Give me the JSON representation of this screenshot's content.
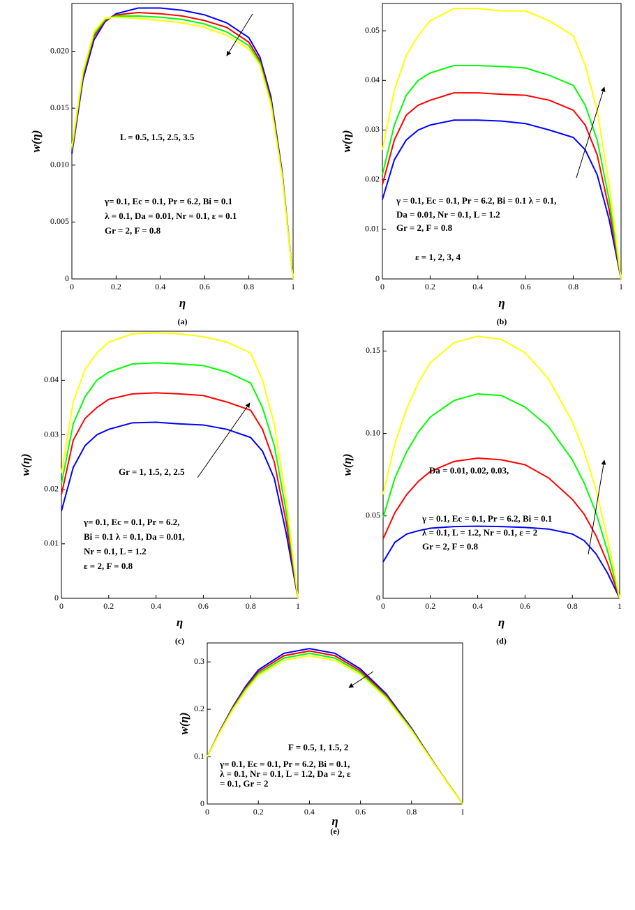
{
  "chart_data": [
    {
      "type": "line",
      "panel": "(a)",
      "xlabel": "η",
      "ylabel": "w(η)",
      "annotations": [
        "L = 0.5, 1.5, 2.5, 3.5",
        "γ= 0.1, Ec = 0.1, Pr = 6.2, Bi = 0.1",
        "λ = 0.1, Da = 0.01, Nr = 0.1, ε = 0.1",
        "Gr = 2, F = 0.8"
      ],
      "x": [
        0,
        0.05,
        0.1,
        0.15,
        0.2,
        0.3,
        0.4,
        0.5,
        0.6,
        0.7,
        0.8,
        0.85,
        0.9,
        0.95,
        1
      ],
      "series": [
        {
          "color": "#0000ff",
          "values": [
            0.011,
            0.0175,
            0.021,
            0.0226,
            0.0233,
            0.0238,
            0.0238,
            0.0236,
            0.0232,
            0.0225,
            0.0212,
            0.0195,
            0.016,
            0.0095,
            0
          ]
        },
        {
          "color": "#ff0000",
          "values": [
            0.0112,
            0.0178,
            0.0213,
            0.0227,
            0.0232,
            0.0234,
            0.0233,
            0.0231,
            0.0227,
            0.0221,
            0.0208,
            0.0192,
            0.0157,
            0.0093,
            0
          ]
        },
        {
          "color": "#00ff00",
          "values": [
            0.0114,
            0.018,
            0.0215,
            0.0228,
            0.0231,
            0.0231,
            0.023,
            0.0228,
            0.0224,
            0.0217,
            0.0205,
            0.019,
            0.0155,
            0.0092,
            0
          ]
        },
        {
          "color": "#ffff00",
          "values": [
            0.0116,
            0.0182,
            0.0217,
            0.0229,
            0.023,
            0.0229,
            0.0227,
            0.0225,
            0.0221,
            0.0214,
            0.0202,
            0.0188,
            0.0153,
            0.0091,
            0
          ]
        }
      ],
      "xlim": [
        0,
        1
      ],
      "xticks": [
        0,
        0.2,
        0.4,
        0.6,
        0.8,
        1
      ],
      "ylim": [
        0,
        0.0242
      ],
      "yticks": [
        0,
        0.005,
        {
          "value": 0.01,
          "label": "0.010"
        },
        0.015,
        {
          "value": 0.02,
          "label": "0.020"
        }
      ]
    },
    {
      "type": "line",
      "panel": "(b)",
      "xlabel": "η",
      "ylabel": "w(η)",
      "annotations": [
        "γ = 0.1, Ec = 0.1, Pr = 6.2, Bi = 0.1  λ = 0.1,",
        "Da = 0.01, Nr = 0.1, L = 1.2",
        "Gr = 2, F = 0.8",
        "ε = 1, 2, 3, 4"
      ],
      "x": [
        0,
        0.05,
        0.1,
        0.15,
        0.2,
        0.3,
        0.4,
        0.5,
        0.6,
        0.7,
        0.8,
        0.85,
        0.9,
        0.95,
        1
      ],
      "series": [
        {
          "color": "#0000ff",
          "values": [
            0.016,
            0.024,
            0.028,
            0.03,
            0.031,
            0.032,
            0.032,
            0.0318,
            0.0313,
            0.03,
            0.0285,
            0.026,
            0.021,
            0.012,
            0
          ]
        },
        {
          "color": "#ff0000",
          "values": [
            0.019,
            0.028,
            0.033,
            0.035,
            0.036,
            0.0375,
            0.0375,
            0.0372,
            0.037,
            0.036,
            0.034,
            0.031,
            0.025,
            0.014,
            0
          ]
        },
        {
          "color": "#00ff00",
          "values": [
            0.021,
            0.031,
            0.037,
            0.04,
            0.0415,
            0.043,
            0.043,
            0.0428,
            0.0425,
            0.041,
            0.039,
            0.035,
            0.028,
            0.016,
            0
          ]
        },
        {
          "color": "#ffff00",
          "values": [
            0.026,
            0.038,
            0.045,
            0.049,
            0.052,
            0.0545,
            0.0545,
            0.054,
            0.054,
            0.052,
            0.049,
            0.043,
            0.034,
            0.019,
            0
          ]
        }
      ],
      "xlim": [
        0,
        1
      ],
      "xticks": [
        0,
        0.2,
        0.4,
        0.6,
        0.8,
        1
      ],
      "ylim": [
        0,
        0.0555
      ],
      "yticks": [
        0,
        0.01,
        0.02,
        0.03,
        0.04,
        0.05
      ]
    },
    {
      "type": "line",
      "panel": "(c)",
      "xlabel": "η",
      "ylabel": "w(η)",
      "annotations": [
        "Gr = 1, 1.5, 2, 2.5",
        "γ= 0.1, Ec = 0.1, Pr = 6.2,",
        "Bi = 0.1  λ = 0.1, Da = 0.01,",
        "Nr = 0.1, L = 1.2",
        "ε = 2, F = 0.8"
      ],
      "x": [
        0,
        0.05,
        0.1,
        0.15,
        0.2,
        0.3,
        0.4,
        0.5,
        0.6,
        0.7,
        0.8,
        0.85,
        0.9,
        0.95,
        1
      ],
      "series": [
        {
          "color": "#0000ff",
          "values": [
            0.016,
            0.024,
            0.028,
            0.03,
            0.031,
            0.0322,
            0.0323,
            0.032,
            0.0318,
            0.031,
            0.0295,
            0.027,
            0.022,
            0.012,
            0
          ]
        },
        {
          "color": "#ff0000",
          "values": [
            0.019,
            0.029,
            0.033,
            0.035,
            0.0365,
            0.0375,
            0.0377,
            0.0375,
            0.0372,
            0.036,
            0.0345,
            0.031,
            0.025,
            0.014,
            0
          ]
        },
        {
          "color": "#00ff00",
          "values": [
            0.021,
            0.032,
            0.037,
            0.04,
            0.0415,
            0.043,
            0.0432,
            0.043,
            0.0427,
            0.0415,
            0.0395,
            0.035,
            0.028,
            0.016,
            0
          ]
        },
        {
          "color": "#ffff00",
          "values": [
            0.023,
            0.036,
            0.042,
            0.045,
            0.047,
            0.0485,
            0.0487,
            0.0485,
            0.048,
            0.047,
            0.045,
            0.04,
            0.032,
            0.018,
            0
          ]
        }
      ],
      "xlim": [
        0,
        1
      ],
      "xticks": [
        0,
        0.2,
        0.4,
        0.6,
        0.8,
        1
      ],
      "ylim": [
        0,
        0.049
      ],
      "yticks": [
        0,
        0.01,
        0.02,
        0.03,
        0.04
      ]
    },
    {
      "type": "line",
      "panel": "(d)",
      "xlabel": "η",
      "ylabel": "w(η)",
      "annotations": [
        "Da = 0.01, 0.02, 0.03,",
        "γ = 0.1, Ec = 0.1, Pr = 6.2, Bi = 0.1",
        "λ = 0.1, L = 1.2, Nr = 0.1, ε = 2",
        "Gr = 2, F = 0.8"
      ],
      "x": [
        0,
        0.05,
        0.1,
        0.15,
        0.2,
        0.3,
        0.4,
        0.5,
        0.6,
        0.7,
        0.8,
        0.85,
        0.9,
        0.95,
        1
      ],
      "series": [
        {
          "color": "#0000ff",
          "values": [
            0.022,
            0.034,
            0.039,
            0.041,
            0.0425,
            0.0435,
            0.0437,
            0.0435,
            0.043,
            0.042,
            0.039,
            0.035,
            0.027,
            0.015,
            0
          ]
        },
        {
          "color": "#ff0000",
          "values": [
            0.036,
            0.052,
            0.063,
            0.071,
            0.077,
            0.083,
            0.085,
            0.084,
            0.081,
            0.073,
            0.06,
            0.051,
            0.038,
            0.021,
            0
          ]
        },
        {
          "color": "#00ff00",
          "values": [
            0.049,
            0.073,
            0.089,
            0.101,
            0.11,
            0.12,
            0.124,
            0.123,
            0.116,
            0.104,
            0.084,
            0.07,
            0.052,
            0.028,
            0
          ]
        },
        {
          "color": "#ffff00",
          "values": [
            0.063,
            0.094,
            0.115,
            0.131,
            0.143,
            0.155,
            0.159,
            0.157,
            0.149,
            0.133,
            0.107,
            0.089,
            0.066,
            0.035,
            0
          ]
        }
      ],
      "xlim": [
        0,
        1
      ],
      "xticks": [
        0,
        0.2,
        0.4,
        0.6,
        0.8,
        1
      ],
      "ylim": [
        0,
        0.162
      ],
      "yticks": [
        0,
        0.05,
        {
          "value": 0.1,
          "label": "0.10"
        },
        0.15
      ]
    },
    {
      "type": "line",
      "panel": "(e)",
      "xlabel": "η",
      "ylabel": "w(η)",
      "annotations": [
        "F = 0.5, 1, 1.5, 2",
        "γ= 0.1, Ec = 0.1, Pr = 6.2, Bi = 0.1,",
        "λ = 0.1, Nr = 0.1, L = 1.2, Da = 2, ε",
        "= 0.1, Gr = 2"
      ],
      "x": [
        0,
        0.05,
        0.1,
        0.15,
        0.2,
        0.3,
        0.4,
        0.5,
        0.6,
        0.7,
        0.8,
        0.85,
        0.9,
        0.95,
        1
      ],
      "series": [
        {
          "color": "#0000ff",
          "values": [
            0.1,
            0.155,
            0.205,
            0.248,
            0.283,
            0.318,
            0.328,
            0.318,
            0.285,
            0.233,
            0.16,
            0.118,
            0.077,
            0.038,
            0
          ]
        },
        {
          "color": "#ff0000",
          "values": [
            0.1,
            0.154,
            0.203,
            0.245,
            0.279,
            0.313,
            0.323,
            0.313,
            0.281,
            0.23,
            0.158,
            0.117,
            0.077,
            0.038,
            0
          ]
        },
        {
          "color": "#00ff00",
          "values": [
            0.1,
            0.153,
            0.201,
            0.242,
            0.275,
            0.308,
            0.318,
            0.308,
            0.277,
            0.227,
            0.157,
            0.116,
            0.076,
            0.038,
            0
          ]
        },
        {
          "color": "#ffff00",
          "values": [
            0.1,
            0.152,
            0.199,
            0.239,
            0.271,
            0.303,
            0.313,
            0.303,
            0.273,
            0.224,
            0.155,
            0.115,
            0.076,
            0.037,
            0
          ]
        }
      ],
      "xlim": [
        0,
        1
      ],
      "xticks": [
        0,
        0.2,
        0.4,
        0.6,
        0.8,
        1
      ],
      "ylim": [
        0,
        0.34
      ],
      "yticks": [
        0,
        0.1,
        0.2,
        0.3
      ]
    }
  ]
}
